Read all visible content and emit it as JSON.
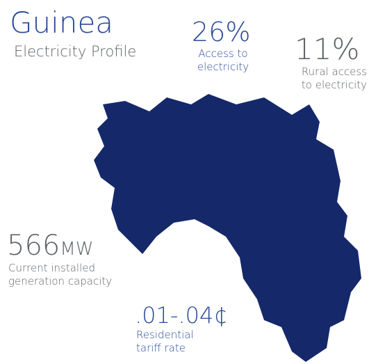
{
  "header": {
    "title": "Guinea",
    "subtitle": "Electricity Profile"
  },
  "stats": [
    {
      "value": "26%",
      "lines": [
        "Access to",
        "electricity"
      ]
    },
    {
      "value": "11%",
      "lines": [
        "Rural access",
        "to electricity"
      ]
    },
    {
      "value": "566",
      "unit": "MW",
      "lines": [
        "Current installed",
        "generation capacity"
      ]
    },
    {
      "value": ".01-.04¢",
      "lines": [
        "Residential",
        "tariff rate"
      ]
    }
  ]
}
